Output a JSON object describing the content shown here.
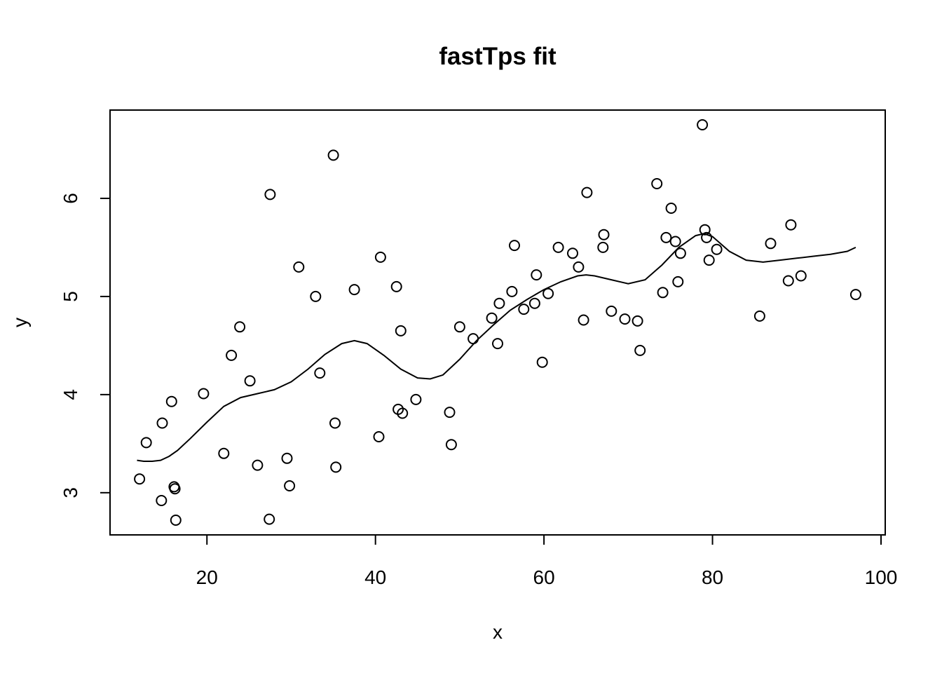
{
  "chart_data": {
    "type": "scatter",
    "title": "fastTps fit",
    "xlabel": "x",
    "ylabel": "y",
    "xlim": [
      8.5,
      100.5
    ],
    "ylim": [
      2.57,
      6.9
    ],
    "xticks": [
      20,
      40,
      60,
      80,
      100
    ],
    "yticks": [
      3,
      4,
      5,
      6
    ],
    "grid": false,
    "legend": "none",
    "points": [
      [
        12.0,
        3.14
      ],
      [
        12.8,
        3.51
      ],
      [
        14.6,
        2.92
      ],
      [
        14.7,
        3.71
      ],
      [
        15.8,
        3.93
      ],
      [
        16.1,
        3.06
      ],
      [
        16.2,
        3.04
      ],
      [
        16.3,
        2.72
      ],
      [
        19.6,
        4.01
      ],
      [
        22.0,
        3.4
      ],
      [
        22.9,
        4.4
      ],
      [
        23.9,
        4.69
      ],
      [
        25.1,
        4.14
      ],
      [
        26.0,
        3.28
      ],
      [
        27.4,
        2.73
      ],
      [
        27.5,
        6.04
      ],
      [
        29.5,
        3.35
      ],
      [
        29.8,
        3.07
      ],
      [
        30.9,
        5.3
      ],
      [
        32.9,
        5.0
      ],
      [
        33.4,
        4.22
      ],
      [
        35.0,
        6.44
      ],
      [
        35.2,
        3.71
      ],
      [
        35.3,
        3.26
      ],
      [
        37.5,
        5.07
      ],
      [
        40.4,
        3.57
      ],
      [
        40.6,
        5.4
      ],
      [
        42.5,
        5.1
      ],
      [
        42.7,
        3.85
      ],
      [
        43.0,
        4.65
      ],
      [
        43.2,
        3.81
      ],
      [
        44.8,
        3.95
      ],
      [
        48.8,
        3.82
      ],
      [
        49.0,
        3.49
      ],
      [
        50.0,
        4.69
      ],
      [
        51.6,
        4.57
      ],
      [
        53.8,
        4.78
      ],
      [
        54.5,
        4.52
      ],
      [
        54.7,
        4.93
      ],
      [
        56.2,
        5.05
      ],
      [
        56.5,
        5.52
      ],
      [
        57.6,
        4.87
      ],
      [
        58.9,
        4.93
      ],
      [
        59.1,
        5.22
      ],
      [
        59.8,
        4.33
      ],
      [
        60.5,
        5.03
      ],
      [
        61.7,
        5.5
      ],
      [
        63.4,
        5.44
      ],
      [
        64.1,
        5.3
      ],
      [
        64.7,
        4.76
      ],
      [
        65.1,
        6.06
      ],
      [
        67.0,
        5.5
      ],
      [
        67.1,
        5.63
      ],
      [
        68.0,
        4.85
      ],
      [
        69.6,
        4.77
      ],
      [
        71.1,
        4.75
      ],
      [
        71.4,
        4.45
      ],
      [
        73.4,
        6.15
      ],
      [
        74.1,
        5.04
      ],
      [
        74.5,
        5.6
      ],
      [
        75.1,
        5.9
      ],
      [
        75.6,
        5.56
      ],
      [
        75.9,
        5.15
      ],
      [
        76.2,
        5.44
      ],
      [
        78.8,
        6.75
      ],
      [
        79.1,
        5.68
      ],
      [
        79.3,
        5.6
      ],
      [
        79.6,
        5.37
      ],
      [
        80.5,
        5.48
      ],
      [
        85.6,
        4.8
      ],
      [
        86.9,
        5.54
      ],
      [
        89.0,
        5.16
      ],
      [
        89.3,
        5.73
      ],
      [
        90.5,
        5.21
      ],
      [
        97.0,
        5.02
      ]
    ],
    "fit_line": {
      "x": [
        11.7,
        12.5,
        13.5,
        14.5,
        15.5,
        16.5,
        18,
        20,
        22,
        24,
        26,
        28,
        30,
        32,
        34,
        36,
        37.5,
        39,
        41,
        43,
        45,
        46.5,
        48,
        50,
        52,
        54,
        56,
        58,
        60,
        62,
        64,
        65,
        66,
        68,
        70,
        72,
        74,
        76,
        78,
        79,
        80,
        82,
        84,
        86,
        88,
        90,
        92,
        94,
        96,
        97
      ],
      "y": [
        3.33,
        3.32,
        3.32,
        3.33,
        3.37,
        3.43,
        3.55,
        3.72,
        3.88,
        3.97,
        4.01,
        4.05,
        4.13,
        4.26,
        4.41,
        4.52,
        4.55,
        4.52,
        4.4,
        4.26,
        4.17,
        4.16,
        4.2,
        4.36,
        4.55,
        4.71,
        4.86,
        4.97,
        5.07,
        5.15,
        5.21,
        5.22,
        5.21,
        5.17,
        5.13,
        5.17,
        5.32,
        5.5,
        5.62,
        5.64,
        5.61,
        5.46,
        5.37,
        5.35,
        5.37,
        5.39,
        5.41,
        5.43,
        5.46,
        5.5
      ]
    }
  }
}
